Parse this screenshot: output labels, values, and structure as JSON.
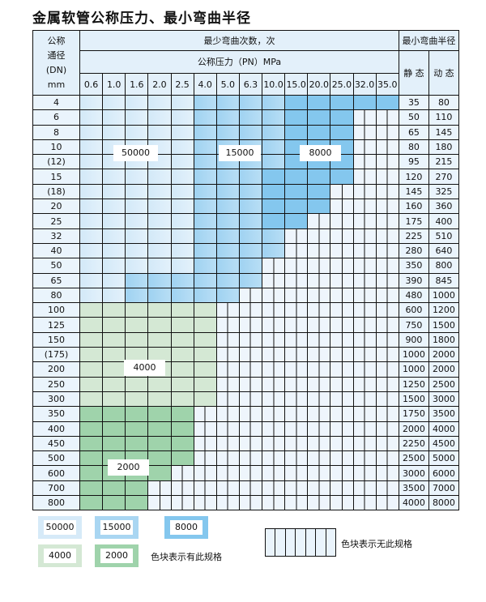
{
  "title": "金属软管公称压力、最小弯曲半径",
  "header": {
    "dn_label": [
      "公称",
      "通径",
      "(DN)",
      "mm"
    ],
    "bend_count": "最少弯曲次数，次",
    "pressure": "公称压力（PN）MPa",
    "min_radius": "最小弯曲半径",
    "static": "静 态",
    "dynamic": "动 态"
  },
  "pressures": [
    "0.6",
    "1.0",
    "1.6",
    "2.0",
    "2.5",
    "4.0",
    "5.0",
    "6.3",
    "10.0",
    "15.0",
    "20.0",
    "25.0",
    "32.0",
    "35.0"
  ],
  "colors": {
    "A": "#d3e9f8",
    "B": "#a9d6f2",
    "C": "#84c7ee",
    "D": "#d4e8d4",
    "E": "#9fd3ab",
    "X": "#eef5fc"
  },
  "rows": [
    {
      "dn": "4",
      "static": "35",
      "dynamic": "80",
      "cells": "AAAAABBBBCCCCC"
    },
    {
      "dn": "6",
      "static": "50",
      "dynamic": "110",
      "cells": "AAAAABBBBCCCXX"
    },
    {
      "dn": "8",
      "static": "65",
      "dynamic": "145",
      "cells": "AAAAABBBBCCCXX"
    },
    {
      "dn": "10",
      "static": "80",
      "dynamic": "180",
      "cells": "AAAAABBBBCCCXX"
    },
    {
      "dn": "(12)",
      "static": "95",
      "dynamic": "215",
      "cells": "AAAAABBBBCCCXX"
    },
    {
      "dn": "15",
      "static": "120",
      "dynamic": "270",
      "cells": "AAAAABBBCCCCXX"
    },
    {
      "dn": "(18)",
      "static": "145",
      "dynamic": "325",
      "cells": "AAAAABBBCCCXXX"
    },
    {
      "dn": "20",
      "static": "160",
      "dynamic": "360",
      "cells": "AAAAABBBCCCXXX"
    },
    {
      "dn": "25",
      "static": "175",
      "dynamic": "400",
      "cells": "AAAAABBBCCXXXX"
    },
    {
      "dn": "32",
      "static": "225",
      "dynamic": "510",
      "cells": "AAAAABBBBXXXXX"
    },
    {
      "dn": "40",
      "static": "280",
      "dynamic": "640",
      "cells": "AAAAABBBBXXXXX"
    },
    {
      "dn": "50",
      "static": "350",
      "dynamic": "800",
      "cells": "AAAAABBBXXXXXX"
    },
    {
      "dn": "65",
      "static": "390",
      "dynamic": "845",
      "cells": "AABBBBBBXXXXXX"
    },
    {
      "dn": "80",
      "static": "480",
      "dynamic": "1000",
      "cells": "AABBBBBXXXXXXX"
    },
    {
      "dn": "100",
      "static": "600",
      "dynamic": "1200",
      "cells": "DDDDDDXXXXXXXX"
    },
    {
      "dn": "125",
      "static": "750",
      "dynamic": "1500",
      "cells": "DDDDDDXXXXXXXX"
    },
    {
      "dn": "150",
      "static": "900",
      "dynamic": "1800",
      "cells": "DDDDDDXXXXXXXX"
    },
    {
      "dn": "(175)",
      "static": "1000",
      "dynamic": "2000",
      "cells": "DDDDDDXXXXXXXX"
    },
    {
      "dn": "200",
      "static": "1000",
      "dynamic": "2000",
      "cells": "DDDDDDXXXXXXXX"
    },
    {
      "dn": "250",
      "static": "1250",
      "dynamic": "2500",
      "cells": "DDDDDDXXXXXXXX"
    },
    {
      "dn": "300",
      "static": "1500",
      "dynamic": "3000",
      "cells": "DDDDDDXXXXXXXX"
    },
    {
      "dn": "350",
      "static": "1750",
      "dynamic": "3500",
      "cells": "EEEEEXXXXXXXXX"
    },
    {
      "dn": "400",
      "static": "2000",
      "dynamic": "4000",
      "cells": "EEEEEXXXXXXXXX"
    },
    {
      "dn": "450",
      "static": "2250",
      "dynamic": "4500",
      "cells": "EEEEEXXXXXXXXX"
    },
    {
      "dn": "500",
      "static": "2500",
      "dynamic": "5000",
      "cells": "EEEEEXXXXXXXXX"
    },
    {
      "dn": "600",
      "static": "3000",
      "dynamic": "6000",
      "cells": "EEEEXXXXXXXXXX"
    },
    {
      "dn": "700",
      "static": "3500",
      "dynamic": "7000",
      "cells": "EEEXXXXXXXXXXX"
    },
    {
      "dn": "800",
      "static": "4000",
      "dynamic": "8000",
      "cells": "EEEXXXXXXXXXXX"
    }
  ],
  "region_labels": {
    "A": "50000",
    "B": "15000",
    "C": "8000",
    "D": "4000",
    "E": "2000"
  },
  "legend": {
    "available_text": "色块表示有此规格",
    "unavailable_text": "色块表示无此规格"
  }
}
